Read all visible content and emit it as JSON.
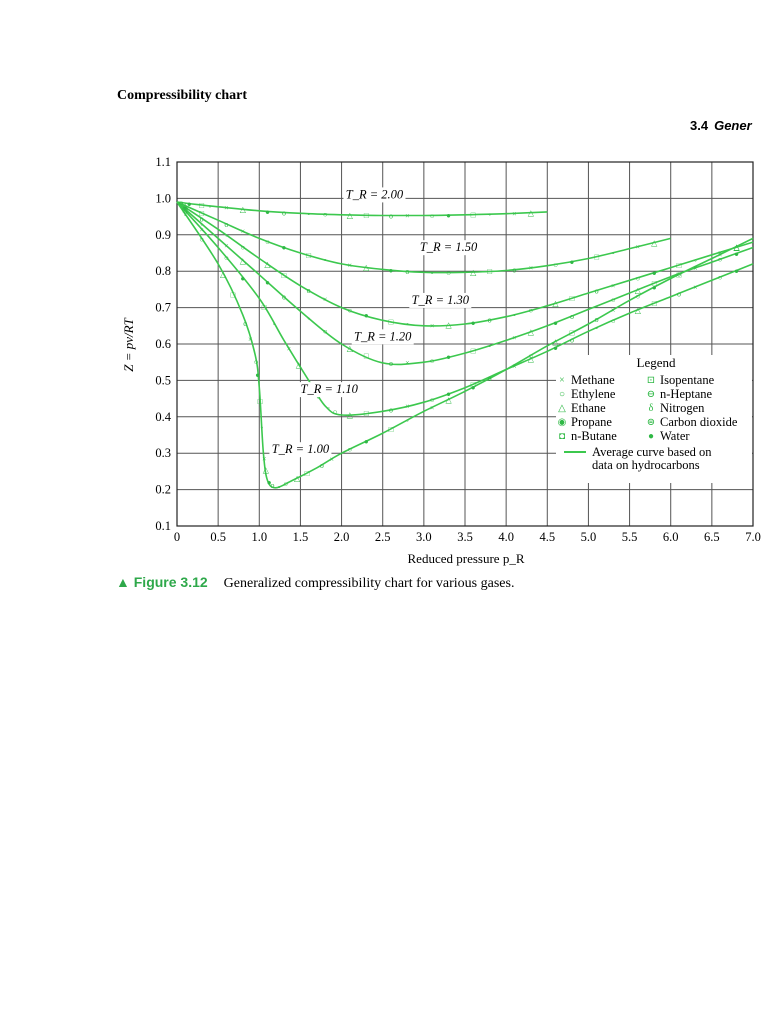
{
  "document": {
    "title": "Compressibility chart",
    "section_number": "3.4",
    "section_word": "Gener"
  },
  "caption": {
    "lead": "▲ Figure 3.12",
    "text": "Generalized compressibility chart for various gases."
  },
  "colors": {
    "curve": "#3cc84e",
    "marker": "#2fb845",
    "grid": "#555555",
    "caption_accent": "#2ea84a"
  },
  "chart_data": {
    "type": "line",
    "title": "",
    "xlabel": "Reduced pressure p_R",
    "ylabel": "Z = pv/RT",
    "xlim": [
      0,
      7.0
    ],
    "ylim": [
      0.1,
      1.1
    ],
    "x_ticks": [
      "0",
      "0.5",
      "1.0",
      "1.5",
      "2.0",
      "2.5",
      "3.0",
      "3.5",
      "4.0",
      "4.5",
      "5.0",
      "5.5",
      "6.0",
      "6.5",
      "7.0"
    ],
    "y_ticks": [
      "0.1",
      "0.2",
      "0.3",
      "0.4",
      "0.5",
      "0.6",
      "0.7",
      "0.8",
      "0.9",
      "1.0",
      "1.1"
    ],
    "grid": true,
    "legend_placement": "bottom-right",
    "legend_title": "Legend",
    "legend_entries": [
      {
        "symbol": "×",
        "label": "Methane"
      },
      {
        "symbol": "○",
        "label": "Ethylene"
      },
      {
        "symbol": "△",
        "label": "Ethane"
      },
      {
        "symbol": "◉",
        "label": "Propane"
      },
      {
        "symbol": "◘",
        "label": "n-Butane"
      },
      {
        "symbol": "⊡",
        "label": "Isopentane"
      },
      {
        "symbol": "⊖",
        "label": "n-Heptane"
      },
      {
        "symbol": "δ",
        "label": "Nitrogen"
      },
      {
        "symbol": "⊜",
        "label": "Carbon dioxide"
      },
      {
        "symbol": "●",
        "label": "Water"
      }
    ],
    "legend_line_label": [
      "Average curve based on",
      "data on hydrocarbons"
    ],
    "series": [
      {
        "name": "T_R = 2.00",
        "label_at": [
          2.4,
          1.0
        ],
        "x": [
          0,
          0.25,
          0.5,
          1.0,
          1.5,
          2.0,
          2.5,
          3.0,
          3.5,
          4.0,
          4.5
        ],
        "y": [
          0.99,
          0.983,
          0.977,
          0.966,
          0.959,
          0.955,
          0.953,
          0.953,
          0.955,
          0.958,
          0.963
        ]
      },
      {
        "name": "T_R = 1.50",
        "label_at": [
          3.3,
          0.855
        ],
        "x": [
          0,
          0.5,
          1.0,
          1.5,
          2.0,
          2.5,
          3.0,
          3.5,
          4.0,
          4.5,
          5.0,
          5.5,
          6.0
        ],
        "y": [
          0.99,
          0.94,
          0.89,
          0.85,
          0.82,
          0.805,
          0.797,
          0.797,
          0.802,
          0.815,
          0.835,
          0.862,
          0.89
        ]
      },
      {
        "name": "T_R = 1.30",
        "label_at": [
          3.2,
          0.71
        ],
        "x": [
          0,
          0.5,
          1.0,
          1.5,
          2.0,
          2.5,
          3.0,
          3.5,
          4.0,
          4.5,
          5.0,
          5.5,
          6.0,
          6.5,
          7.0
        ],
        "y": [
          0.99,
          0.915,
          0.835,
          0.76,
          0.7,
          0.665,
          0.65,
          0.655,
          0.675,
          0.705,
          0.74,
          0.775,
          0.81,
          0.845,
          0.88
        ]
      },
      {
        "name": "T_R = 1.20",
        "label_at": [
          2.5,
          0.61
        ],
        "x": [
          0,
          0.5,
          1.0,
          1.5,
          2.0,
          2.5,
          3.0,
          3.5,
          4.0,
          4.5,
          5.0,
          5.5,
          6.0,
          6.5,
          7.0
        ],
        "y": [
          0.99,
          0.89,
          0.79,
          0.69,
          0.6,
          0.548,
          0.55,
          0.575,
          0.61,
          0.65,
          0.695,
          0.74,
          0.785,
          0.825,
          0.865
        ]
      },
      {
        "name": "T_R = 1.10",
        "label_at": [
          1.85,
          0.465
        ],
        "x": [
          0,
          0.5,
          1.0,
          1.3,
          1.6,
          1.8,
          2.0,
          2.5,
          3.0,
          3.5,
          4.0,
          4.5,
          5.0,
          5.5,
          6.0,
          6.5,
          7.0
        ],
        "y": [
          0.99,
          0.865,
          0.725,
          0.61,
          0.5,
          0.43,
          0.405,
          0.415,
          0.44,
          0.48,
          0.53,
          0.58,
          0.635,
          0.685,
          0.73,
          0.775,
          0.82
        ]
      },
      {
        "name": "T_R = 1.00",
        "label_at": [
          1.5,
          0.3
        ],
        "x": [
          0,
          0.5,
          0.8,
          0.95,
          1.0,
          1.05,
          1.1,
          1.2,
          1.4,
          1.7,
          2.0,
          2.5,
          3.0,
          3.5,
          4.0,
          4.5,
          5.0,
          5.5,
          6.0,
          6.5,
          7.0
        ],
        "y": [
          0.99,
          0.82,
          0.68,
          0.57,
          0.48,
          0.3,
          0.225,
          0.205,
          0.225,
          0.26,
          0.3,
          0.355,
          0.415,
          0.47,
          0.53,
          0.595,
          0.655,
          0.72,
          0.78,
          0.835,
          0.89
        ]
      }
    ]
  }
}
